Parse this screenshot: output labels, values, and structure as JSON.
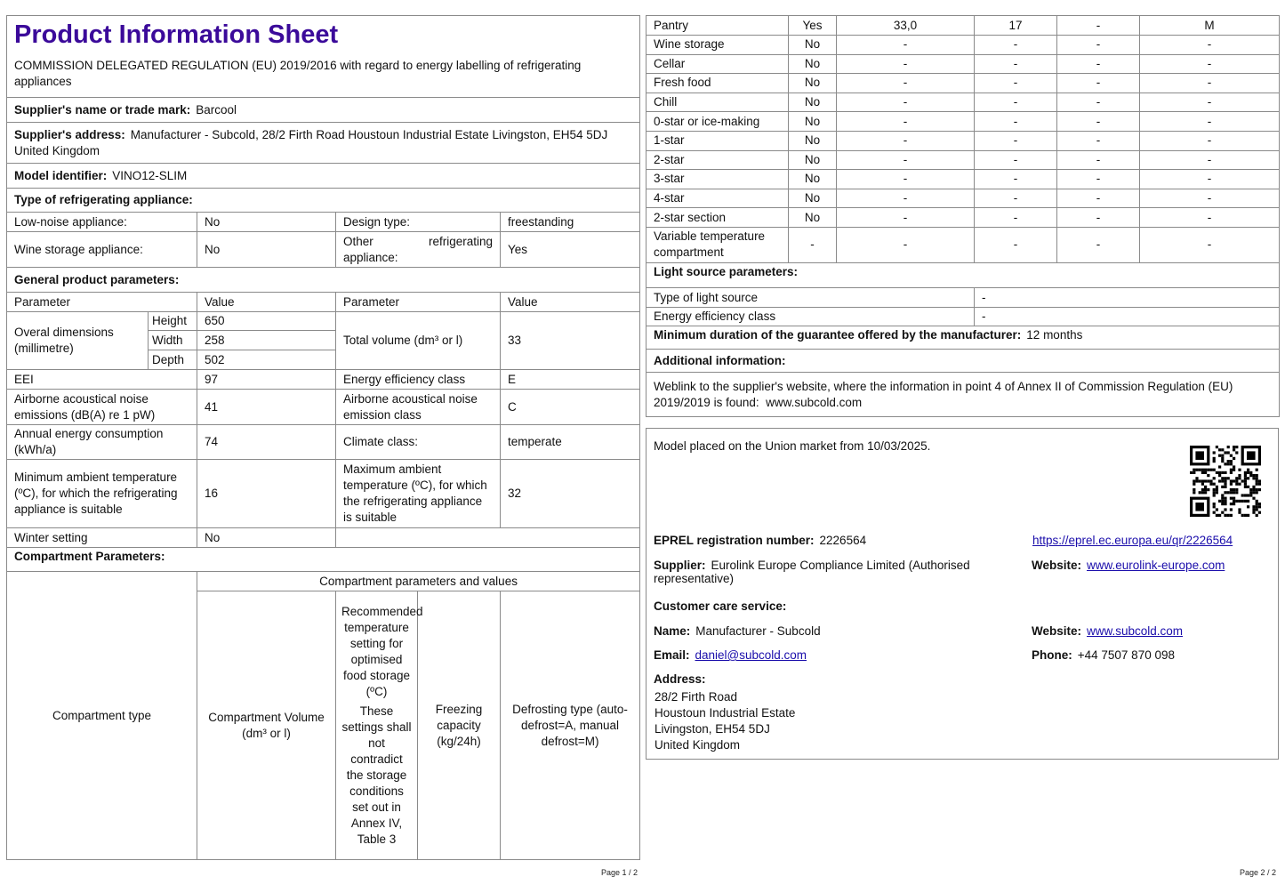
{
  "page1": {
    "title": "Product Information Sheet",
    "regulation": "COMMISSION DELEGATED REGULATION (EU) 2019/2016 with regard to energy labelling of refrigerating appliances",
    "supplier_name_label": "Supplier's name or trade mark:",
    "supplier_name": "Barcool",
    "supplier_address_label": "Supplier's address:",
    "supplier_address": "Manufacturer - Subcold, 28/2 Firth Road Houstoun Industrial Estate Livingston, EH54 5DJ United Kingdom",
    "model_label": "Model identifier:",
    "model": "VINO12-SLIM",
    "type_heading": "Type of refrigerating appliance:",
    "low_noise_label": "Low-noise appliance:",
    "low_noise": "No",
    "design_type_label": "Design type:",
    "design_type": "freestanding",
    "wine_storage_label": "Wine storage appliance:",
    "wine_storage": "No",
    "other_label": "Other refrigerating appliance:",
    "other": "Yes",
    "general_heading": "General product parameters:",
    "col_parameter": "Parameter",
    "col_value": "Value",
    "dimensions_label": "Overal dimensions (millimetre)",
    "height_label": "Height",
    "height": "650",
    "width_label": "Width",
    "width": "258",
    "depth_label": "Depth",
    "depth": "502",
    "total_volume_label": "Total volume (dm³ or l)",
    "total_volume": "33",
    "eei_label": "EEI",
    "eei": "97",
    "eec_label": "Energy efficiency class",
    "eec": "E",
    "noise_label": "Airborne acoustical noise emissions (dB(A) re 1 pW)",
    "noise": "41",
    "noise_class_label": "Airborne acoustical noise emission class",
    "noise_class": "C",
    "annual_label": "Annual energy consumption (kWh/a)",
    "annual": "74",
    "climate_label": "Climate class:",
    "climate": "temperate",
    "min_temp_label": "Minimum ambient temperature (ºC), for which the refrigerating appliance is suitable",
    "min_temp": "16",
    "max_temp_label": "Maximum ambient temperature (ºC), for which the refrigerating appliance is suitable",
    "max_temp": "32",
    "winter_label": "Winter setting",
    "winter": "No",
    "compartment_heading": "Compartment Parameters:",
    "comp_type_header": "Compartment type",
    "comp_values_header": "Compartment parameters and values",
    "comp_volume_header": "Compartment Volume (dm³ or l)",
    "comp_temp_header": "Recommended temperature setting for optimised food storage (ºC)",
    "comp_temp_note": "These settings shall not contradict the storage conditions set out in Annex IV, Table 3",
    "comp_freeze_header": "Freezing capacity (kg/24h)",
    "comp_defrost_header": "Defrosting type (auto-defrost=A, manual defrost=M)",
    "page_number": "Page 1 / 2"
  },
  "page2": {
    "compartments": [
      [
        "Pantry",
        "Yes",
        "33,0",
        "17",
        "-",
        "M"
      ],
      [
        "Wine storage",
        "No",
        "-",
        "-",
        "-",
        "-"
      ],
      [
        "Cellar",
        "No",
        "-",
        "-",
        "-",
        "-"
      ],
      [
        "Fresh food",
        "No",
        "-",
        "-",
        "-",
        "-"
      ],
      [
        "Chill",
        "No",
        "-",
        "-",
        "-",
        "-"
      ],
      [
        "0-star or ice-making",
        "No",
        "-",
        "-",
        "-",
        "-"
      ],
      [
        "1-star",
        "No",
        "-",
        "-",
        "-",
        "-"
      ],
      [
        "2-star",
        "No",
        "-",
        "-",
        "-",
        "-"
      ],
      [
        "3-star",
        "No",
        "-",
        "-",
        "-",
        "-"
      ],
      [
        "4-star",
        "No",
        "-",
        "-",
        "-",
        "-"
      ],
      [
        "2-star section",
        "No",
        "-",
        "-",
        "-",
        "-"
      ],
      [
        "Variable temperature compartment",
        "-",
        "-",
        "-",
        "-",
        "-"
      ]
    ],
    "light_heading": "Light source parameters:",
    "light_type_label": "Type of light source",
    "light_type": "-",
    "light_eec_label": "Energy efficiency class",
    "light_eec": "-",
    "guarantee_label": "Minimum duration of the guarantee offered by the manufacturer:",
    "guarantee": "12 months",
    "additional_heading": "Additional information:",
    "weblink_text": "Weblink to the supplier's website, where the information in point 4 of Annex II of Commission Regulation (EU) 2019/2019 is found:",
    "weblink": "www.subcold.com",
    "placed_on_market": "Model placed on the Union market from 10/03/2025.",
    "eprel_label": "EPREL registration number:",
    "eprel": "2226564",
    "eprel_link": "https://eprel.ec.europa.eu/qr/2226564",
    "supplier_label": "Supplier:",
    "supplier": "Eurolink Europe Compliance Limited (Authorised representative)",
    "website_label": "Website:",
    "supplier_website": "www.eurolink-europe.com",
    "customer_care_heading": "Customer care service:",
    "name_label": "Name:",
    "name": "Manufacturer - Subcold",
    "care_website": "www.subcold.com",
    "email_label": "Email:",
    "email": "daniel@subcold.com",
    "phone_label": "Phone:",
    "phone": "+44 7507 870 098",
    "address_label": "Address:",
    "address_lines": [
      "28/2 Firth Road",
      "Houstoun Industrial Estate",
      "Livingston, EH54 5DJ",
      "United Kingdom"
    ],
    "page_number": "Page 2 / 2"
  },
  "colors": {
    "title": "#3b0a9a",
    "link": "#1a0dab",
    "border": "#8a8a8a"
  }
}
